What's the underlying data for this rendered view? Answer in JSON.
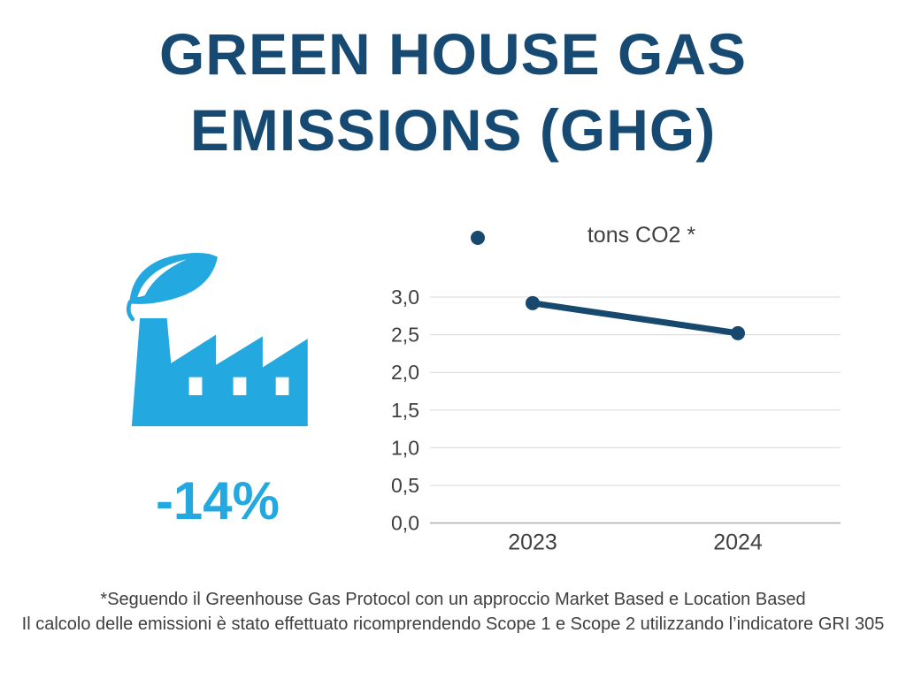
{
  "title": {
    "line1": "GREEN HOUSE GAS",
    "line2": "EMISSIONS (GHG)"
  },
  "highlight": {
    "icon": "factory-with-leaf-icon",
    "value": "-14%"
  },
  "chart_data": {
    "type": "line",
    "legend": "tons CO2 *",
    "legend_position": "top",
    "categories": [
      "2023",
      "2024"
    ],
    "series": [
      {
        "name": "tons CO2 *",
        "values": [
          2.92,
          2.52
        ]
      }
    ],
    "ylim": [
      0,
      3
    ],
    "yticks": [
      {
        "value": 3.0,
        "label": "3,0"
      },
      {
        "value": 2.5,
        "label": "2,5"
      },
      {
        "value": 2.0,
        "label": "2,0"
      },
      {
        "value": 1.5,
        "label": "1,5"
      },
      {
        "value": 1.0,
        "label": "1,0"
      },
      {
        "value": 0.5,
        "label": "0,5"
      },
      {
        "value": 0.0,
        "label": "0,0"
      }
    ],
    "grid": true,
    "line_color": "#17486e",
    "marker": "circle"
  },
  "footnote": {
    "line1": "*Seguendo il Greenhouse Gas Protocol con un approccio Market Based e Location Based",
    "line2": "Il calcolo delle emissioni è stato effettuato ricomprendendo Scope 1 e Scope 2 utilizzando l’indicatore GRI 305"
  },
  "colors": {
    "navy": "#174a72",
    "cyan": "#23a8e0",
    "grid": "#d8d8d8",
    "axis": "#a8a8a8",
    "text_gray": "#3f3f3f"
  }
}
